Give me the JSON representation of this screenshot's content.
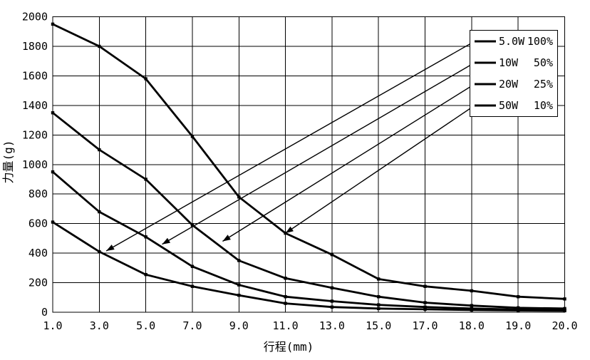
{
  "chart_data": {
    "type": "line",
    "title": "",
    "xlabel": "行程(mm)",
    "ylabel": "力量(g)",
    "x_tick_labels": [
      "1.0",
      "3.0",
      "5.0",
      "7.0",
      "9.0",
      "11.0",
      "13.0",
      "15.0",
      "17.0",
      "18.0",
      "19.0",
      "20.0"
    ],
    "x_tick_values": [
      1,
      3,
      5,
      7,
      9,
      11,
      13,
      15,
      17,
      18,
      19,
      20
    ],
    "y_ticks": [
      0,
      200,
      400,
      600,
      800,
      1000,
      1200,
      1400,
      1600,
      1800,
      2000
    ],
    "ylim": [
      0,
      2000
    ],
    "grid": true,
    "legend_position": "top-right",
    "series": [
      {
        "name": "50W 10%",
        "values": [
          1950,
          1800,
          1580,
          1190,
          780,
          535,
          390,
          225,
          175,
          145,
          105,
          90
        ]
      },
      {
        "name": "20W 25%",
        "values": [
          1350,
          1100,
          900,
          590,
          350,
          230,
          165,
          105,
          65,
          45,
          30,
          25
        ]
      },
      {
        "name": "10W 50%",
        "values": [
          950,
          680,
          510,
          310,
          185,
          105,
          75,
          50,
          35,
          25,
          18,
          15
        ]
      },
      {
        "name": "5.0W 100%",
        "values": [
          610,
          410,
          255,
          175,
          115,
          60,
          35,
          25,
          20,
          15,
          12,
          10
        ]
      }
    ],
    "legend": [
      {
        "power": "5.0W",
        "duty": "100%",
        "target_series": 3,
        "tip": {
          "x": 3.3,
          "y": 415
        }
      },
      {
        "power": "10W",
        "duty": "50%",
        "target_series": 2,
        "tip": {
          "x": 5.7,
          "y": 460
        }
      },
      {
        "power": "20W",
        "duty": "25%",
        "target_series": 1,
        "tip": {
          "x": 8.3,
          "y": 480
        }
      },
      {
        "power": "50W",
        "duty": "10%",
        "target_series": 0,
        "tip": {
          "x": 11.0,
          "y": 535
        }
      }
    ],
    "line_color": "#000000",
    "grid_color": "#000000",
    "background": "#ffffff"
  }
}
